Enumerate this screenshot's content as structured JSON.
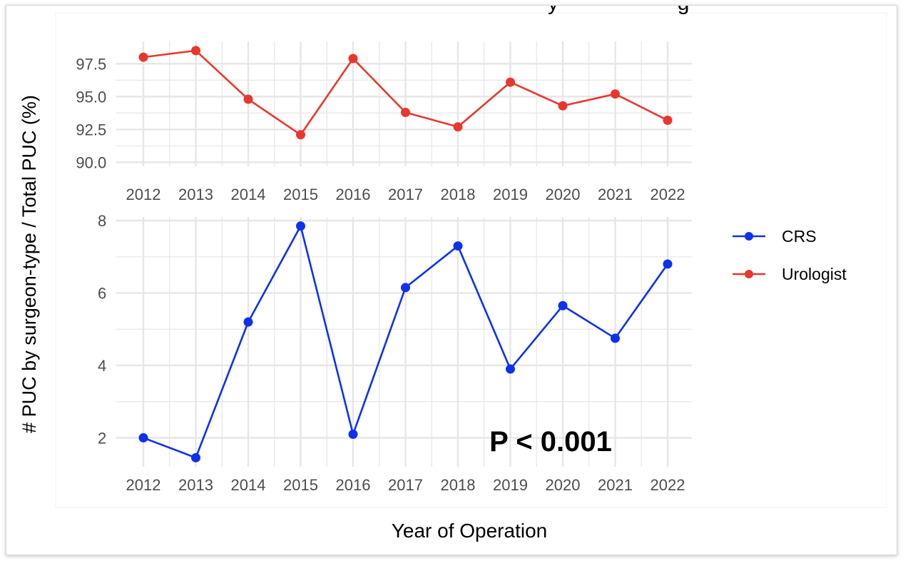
{
  "title_fragment": "y                    g",
  "y_axis_label": "# PUC by surgeon-type / Total PUC (%)",
  "x_axis_label": "Year of Operation",
  "annotation": "P < 0.001",
  "colors": {
    "crs": "#1030ee",
    "urologist": "#e8382e",
    "grid": "#e6e6e6",
    "text": "#4d4d4d"
  },
  "legend": {
    "position": "right",
    "items": [
      {
        "label": "CRS",
        "color": "#1030ee"
      },
      {
        "label": "Urologist",
        "color": "#e8382e"
      }
    ]
  },
  "chart_data": [
    {
      "type": "line",
      "panel": "top",
      "x": [
        "2012",
        "2013",
        "2014",
        "2015",
        "2016",
        "2017",
        "2018",
        "2019",
        "2020",
        "2021",
        "2022"
      ],
      "y_ticks": [
        "90.0",
        "92.5",
        "95.0",
        "97.5"
      ],
      "ylim": [
        89.7,
        99.2
      ],
      "grid": true,
      "series": [
        {
          "name": "Urologist",
          "values": [
            98.0,
            98.5,
            94.8,
            92.1,
            97.9,
            93.8,
            92.7,
            96.1,
            94.3,
            95.2,
            93.2
          ]
        }
      ]
    },
    {
      "type": "line",
      "panel": "bottom",
      "x": [
        "2012",
        "2013",
        "2014",
        "2015",
        "2016",
        "2017",
        "2018",
        "2019",
        "2020",
        "2021",
        "2022"
      ],
      "y_ticks": [
        "2",
        "4",
        "6",
        "8"
      ],
      "ylim": [
        1.2,
        8.1
      ],
      "grid": true,
      "series": [
        {
          "name": "CRS",
          "values": [
            2.0,
            1.45,
            5.2,
            7.85,
            2.1,
            6.15,
            7.3,
            3.9,
            5.65,
            4.75,
            6.8
          ]
        }
      ]
    }
  ]
}
